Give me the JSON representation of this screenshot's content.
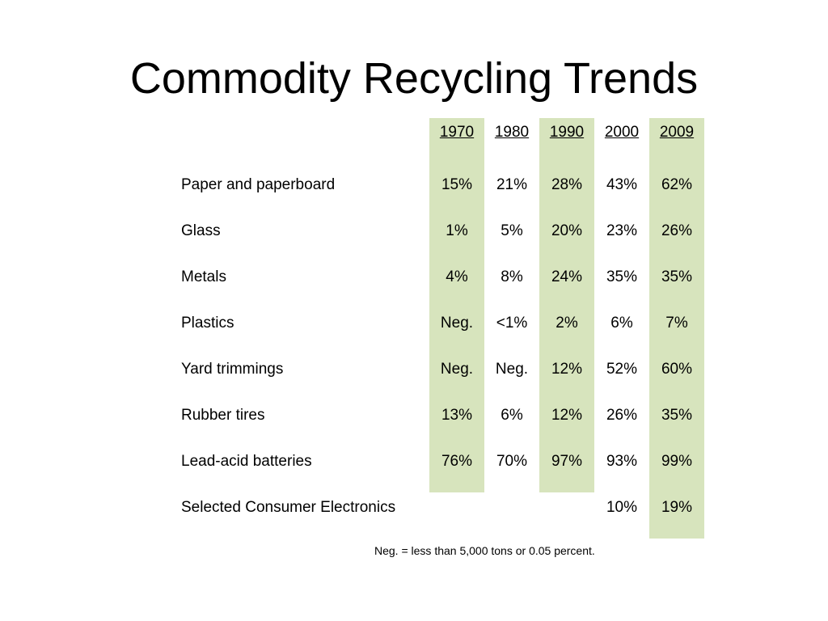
{
  "slide": {
    "title": "Commodity Recycling Trends",
    "footnote": "Neg. = less than 5,000 tons or 0.05 percent."
  },
  "table": {
    "years": [
      "1970",
      "1980",
      "1990",
      "2000",
      "2009"
    ],
    "shade_color": "#d7e4bd",
    "rows": [
      {
        "label": "Paper and paperboard",
        "values": [
          "15%",
          "21%",
          "28%",
          "43%",
          "62%"
        ]
      },
      {
        "label": "Glass",
        "values": [
          "1%",
          "5%",
          "20%",
          "23%",
          "26%"
        ]
      },
      {
        "label": "Metals",
        "values": [
          "4%",
          "8%",
          "24%",
          "35%",
          "35%"
        ]
      },
      {
        "label": "Plastics",
        "values": [
          "Neg.",
          "<1%",
          "2%",
          "6%",
          "7%"
        ]
      },
      {
        "label": "Yard trimmings",
        "values": [
          "Neg.",
          "Neg.",
          "12%",
          "52%",
          "60%"
        ]
      },
      {
        "label": "Rubber tires",
        "values": [
          "13%",
          "6%",
          "12%",
          "26%",
          "35%"
        ]
      },
      {
        "label": "Lead-acid batteries",
        "values": [
          "76%",
          "70%",
          "97%",
          "93%",
          "99%"
        ]
      },
      {
        "label": "Selected Consumer Electronics",
        "values": [
          "",
          "",
          "",
          "10%",
          "19%"
        ]
      }
    ]
  }
}
